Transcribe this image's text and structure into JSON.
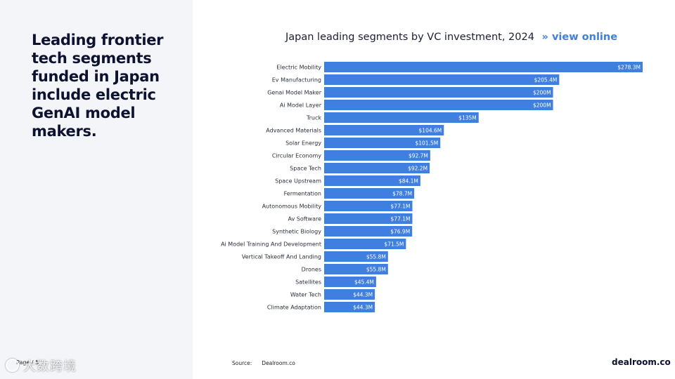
{
  "headline": "Leading frontier\ntech segments\nfunded in Japan\ninclude electric\nGenAI model\nmakers.",
  "chart_title": "Japan leading segments by VC investment, 2024",
  "view_online": "» view online",
  "source_label": "Source:",
  "source_value": "Dealroom.co",
  "brand": "dealroom.co",
  "page_label": "Page / 5",
  "watermark_text": "大数跨境",
  "colors": {
    "bar": "#3f7fe0",
    "bar_label": "#ffffff",
    "link": "#3f7fe0",
    "left_panel": "#f3f5f9"
  },
  "chart_data": {
    "type": "bar",
    "orientation": "horizontal",
    "title": "Japan leading segments by VC investment, 2024",
    "categories": [
      "Electric Mobility",
      "Ev Manufacturing",
      "Genai Model Maker",
      "Ai Model Layer",
      "Truck",
      "Advanced Materials",
      "Solar Energy",
      "Circular Economy",
      "Space Tech",
      "Space Upstream",
      "Fermentation",
      "Autonomous Mobility",
      "Av Software",
      "Synthetic Biology",
      "Ai Model Training And Development",
      "Vertical Takeoff And Landing",
      "Drones",
      "Satellites",
      "Water Tech",
      "Climate Adaptation"
    ],
    "values": [
      278.3,
      205.4,
      200,
      200,
      135,
      104.6,
      101.5,
      92.7,
      92.2,
      84.1,
      78.7,
      77.1,
      77.1,
      76.9,
      71.5,
      55.8,
      55.8,
      45.4,
      44.3,
      44.3
    ],
    "value_labels": [
      "$278.3M",
      "$205.4M",
      "$200M",
      "$200M",
      "$135M",
      "$104.6M",
      "$101.5M",
      "$92.7M",
      "$92.2M",
      "$84.1M",
      "$78.7M",
      "$77.1M",
      "$77.1M",
      "$76.9M",
      "$71.5M",
      "$55.8M",
      "$55.8M",
      "$45.4M",
      "$44.3M",
      "$44.3M"
    ],
    "unit": "USD millions",
    "xlim": [
      0,
      278.3
    ],
    "grid": false,
    "legend": "none"
  }
}
